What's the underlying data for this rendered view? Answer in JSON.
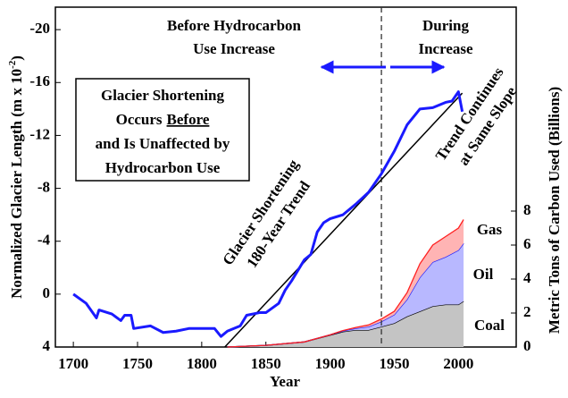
{
  "chart_data": {
    "type": "line",
    "title_left": [
      "Before Hydrocarbon",
      "Use Increase"
    ],
    "title_right": [
      "During",
      "Increase"
    ],
    "box_lines": [
      [
        "Glacier Shortening"
      ],
      [
        "Occurs",
        "Before"
      ],
      [
        "and Is Unaffected by"
      ],
      [
        "Hydrocarbon Use"
      ]
    ],
    "trend_label": [
      "Glacier Shortening",
      "180-Year Trend"
    ],
    "continue_label": [
      "Trend Continues",
      "at Same Slope"
    ],
    "x_label": "Year",
    "y_label": "Normalized Glacier Length (m x 10",
    "y_label_sup": "-2",
    "y_label_end": ")",
    "y2_label": "Metric Tons of Carbon Used (Billions)",
    "xlim": [
      1686,
      2045
    ],
    "xticks": [
      1700,
      1750,
      1800,
      1850,
      1900,
      1950,
      2000
    ],
    "ylim": [
      4,
      -21.7
    ],
    "yticks": [
      -20,
      -16,
      -12,
      -8,
      -4,
      0,
      4
    ],
    "y2lim": [
      0,
      20
    ],
    "y2ticks": [
      0,
      2,
      4,
      6,
      8
    ],
    "divider_year": 1940,
    "glacier": {
      "color": "#1a1aff",
      "x": [
        1700,
        1710,
        1718,
        1720,
        1730,
        1737,
        1740,
        1745,
        1747,
        1760,
        1770,
        1780,
        1790,
        1800,
        1810,
        1815,
        1820,
        1830,
        1835,
        1845,
        1850,
        1860,
        1865,
        1870,
        1880,
        1885,
        1890,
        1895,
        1900,
        1910,
        1920,
        1930,
        1940,
        1950,
        1960,
        1970,
        1980,
        1990,
        1995,
        2000,
        2003
      ],
      "values": [
        0,
        0.7,
        1.8,
        1.2,
        1.5,
        2,
        1.6,
        1.6,
        2.6,
        2.4,
        2.9,
        2.8,
        2.6,
        2.6,
        2.6,
        3.2,
        2.8,
        2.4,
        1.6,
        1.4,
        1.4,
        0.7,
        -0.3,
        -1,
        -2.6,
        -3,
        -4.7,
        -5.4,
        -5.7,
        -6,
        -6.8,
        -7.7,
        -9.1,
        -10.8,
        -12.8,
        -14,
        -14.1,
        -14.5,
        -14.6,
        -15.3,
        -13.8
      ]
    },
    "trend": {
      "color": "#000000",
      "x": [
        1818,
        2003
      ],
      "values": [
        4,
        -15.2
      ]
    },
    "carbon_x": [
      1820,
      1850,
      1880,
      1900,
      1910,
      1920,
      1930,
      1940,
      1950,
      1960,
      1970,
      1980,
      1990,
      2000,
      2004
    ],
    "series": [
      {
        "name": "Coal",
        "color": "#000000",
        "fill": "#c4c4c4",
        "axis": "y2",
        "values": [
          0,
          0.1,
          0.3,
          0.7,
          0.9,
          1.0,
          1.0,
          1.2,
          1.4,
          1.8,
          2.1,
          2.4,
          2.5,
          2.5,
          2.7
        ]
      },
      {
        "name": "Oil",
        "color": "#1a1aff",
        "fill": "#b8b8ff",
        "axis": "y2",
        "values": [
          0,
          0,
          0,
          0.02,
          0.05,
          0.1,
          0.2,
          0.3,
          0.5,
          1.0,
          2.0,
          2.6,
          2.8,
          3.2,
          3.4
        ]
      },
      {
        "name": "Gas",
        "color": "#ff2020",
        "fill": "#ffb4b4",
        "axis": "y2",
        "values": [
          0,
          0,
          0,
          0,
          0.02,
          0.05,
          0.1,
          0.15,
          0.2,
          0.4,
          0.8,
          1.0,
          1.2,
          1.3,
          1.4
        ]
      }
    ]
  }
}
